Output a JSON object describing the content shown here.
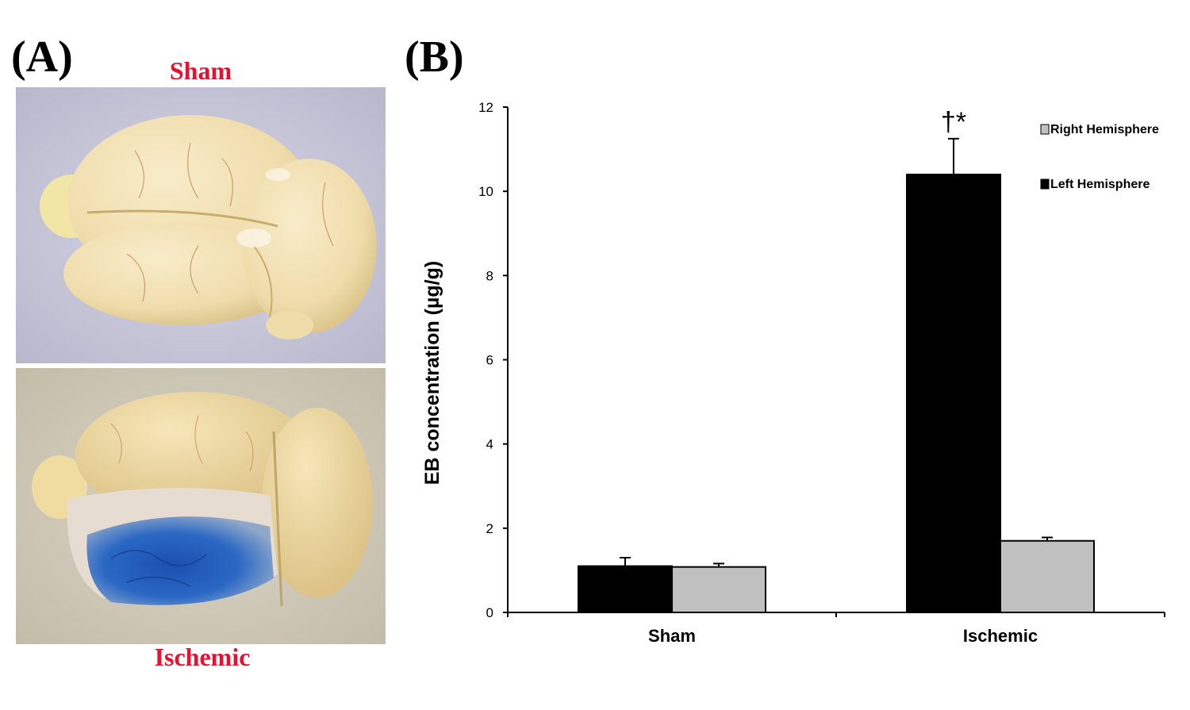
{
  "figure": {
    "panel_a_label": "(A)",
    "panel_b_label": "(B)",
    "caption_color": "#e8102e"
  },
  "photos": {
    "top": {
      "caption": "Sham"
    },
    "bottom": {
      "caption": "Ischemic"
    }
  },
  "chart_data": {
    "type": "bar",
    "title": "",
    "xlabel": "",
    "ylabel": "EB concentration (µg/g)",
    "ylim": [
      0,
      12
    ],
    "yticks": [
      "0",
      "2",
      "4",
      "6",
      "8",
      "10",
      "12"
    ],
    "categories": [
      "Sham",
      "Ischemic"
    ],
    "series": [
      {
        "name": "Left Hemisphere",
        "color": "#000000",
        "values": [
          1.1,
          10.4
        ],
        "errors": [
          0.2,
          0.85
        ]
      },
      {
        "name": "Right Hemisphere",
        "color": "#c0c0c0",
        "values": [
          1.08,
          1.7
        ],
        "errors": [
          0.08,
          0.08
        ]
      }
    ],
    "legend": [
      "Right Hemisphere",
      "Left Hemisphere"
    ],
    "annotations": [
      {
        "category": "Ischemic",
        "series": "Left Hemisphere",
        "text": "†*"
      }
    ],
    "legend_position": "top-right"
  }
}
